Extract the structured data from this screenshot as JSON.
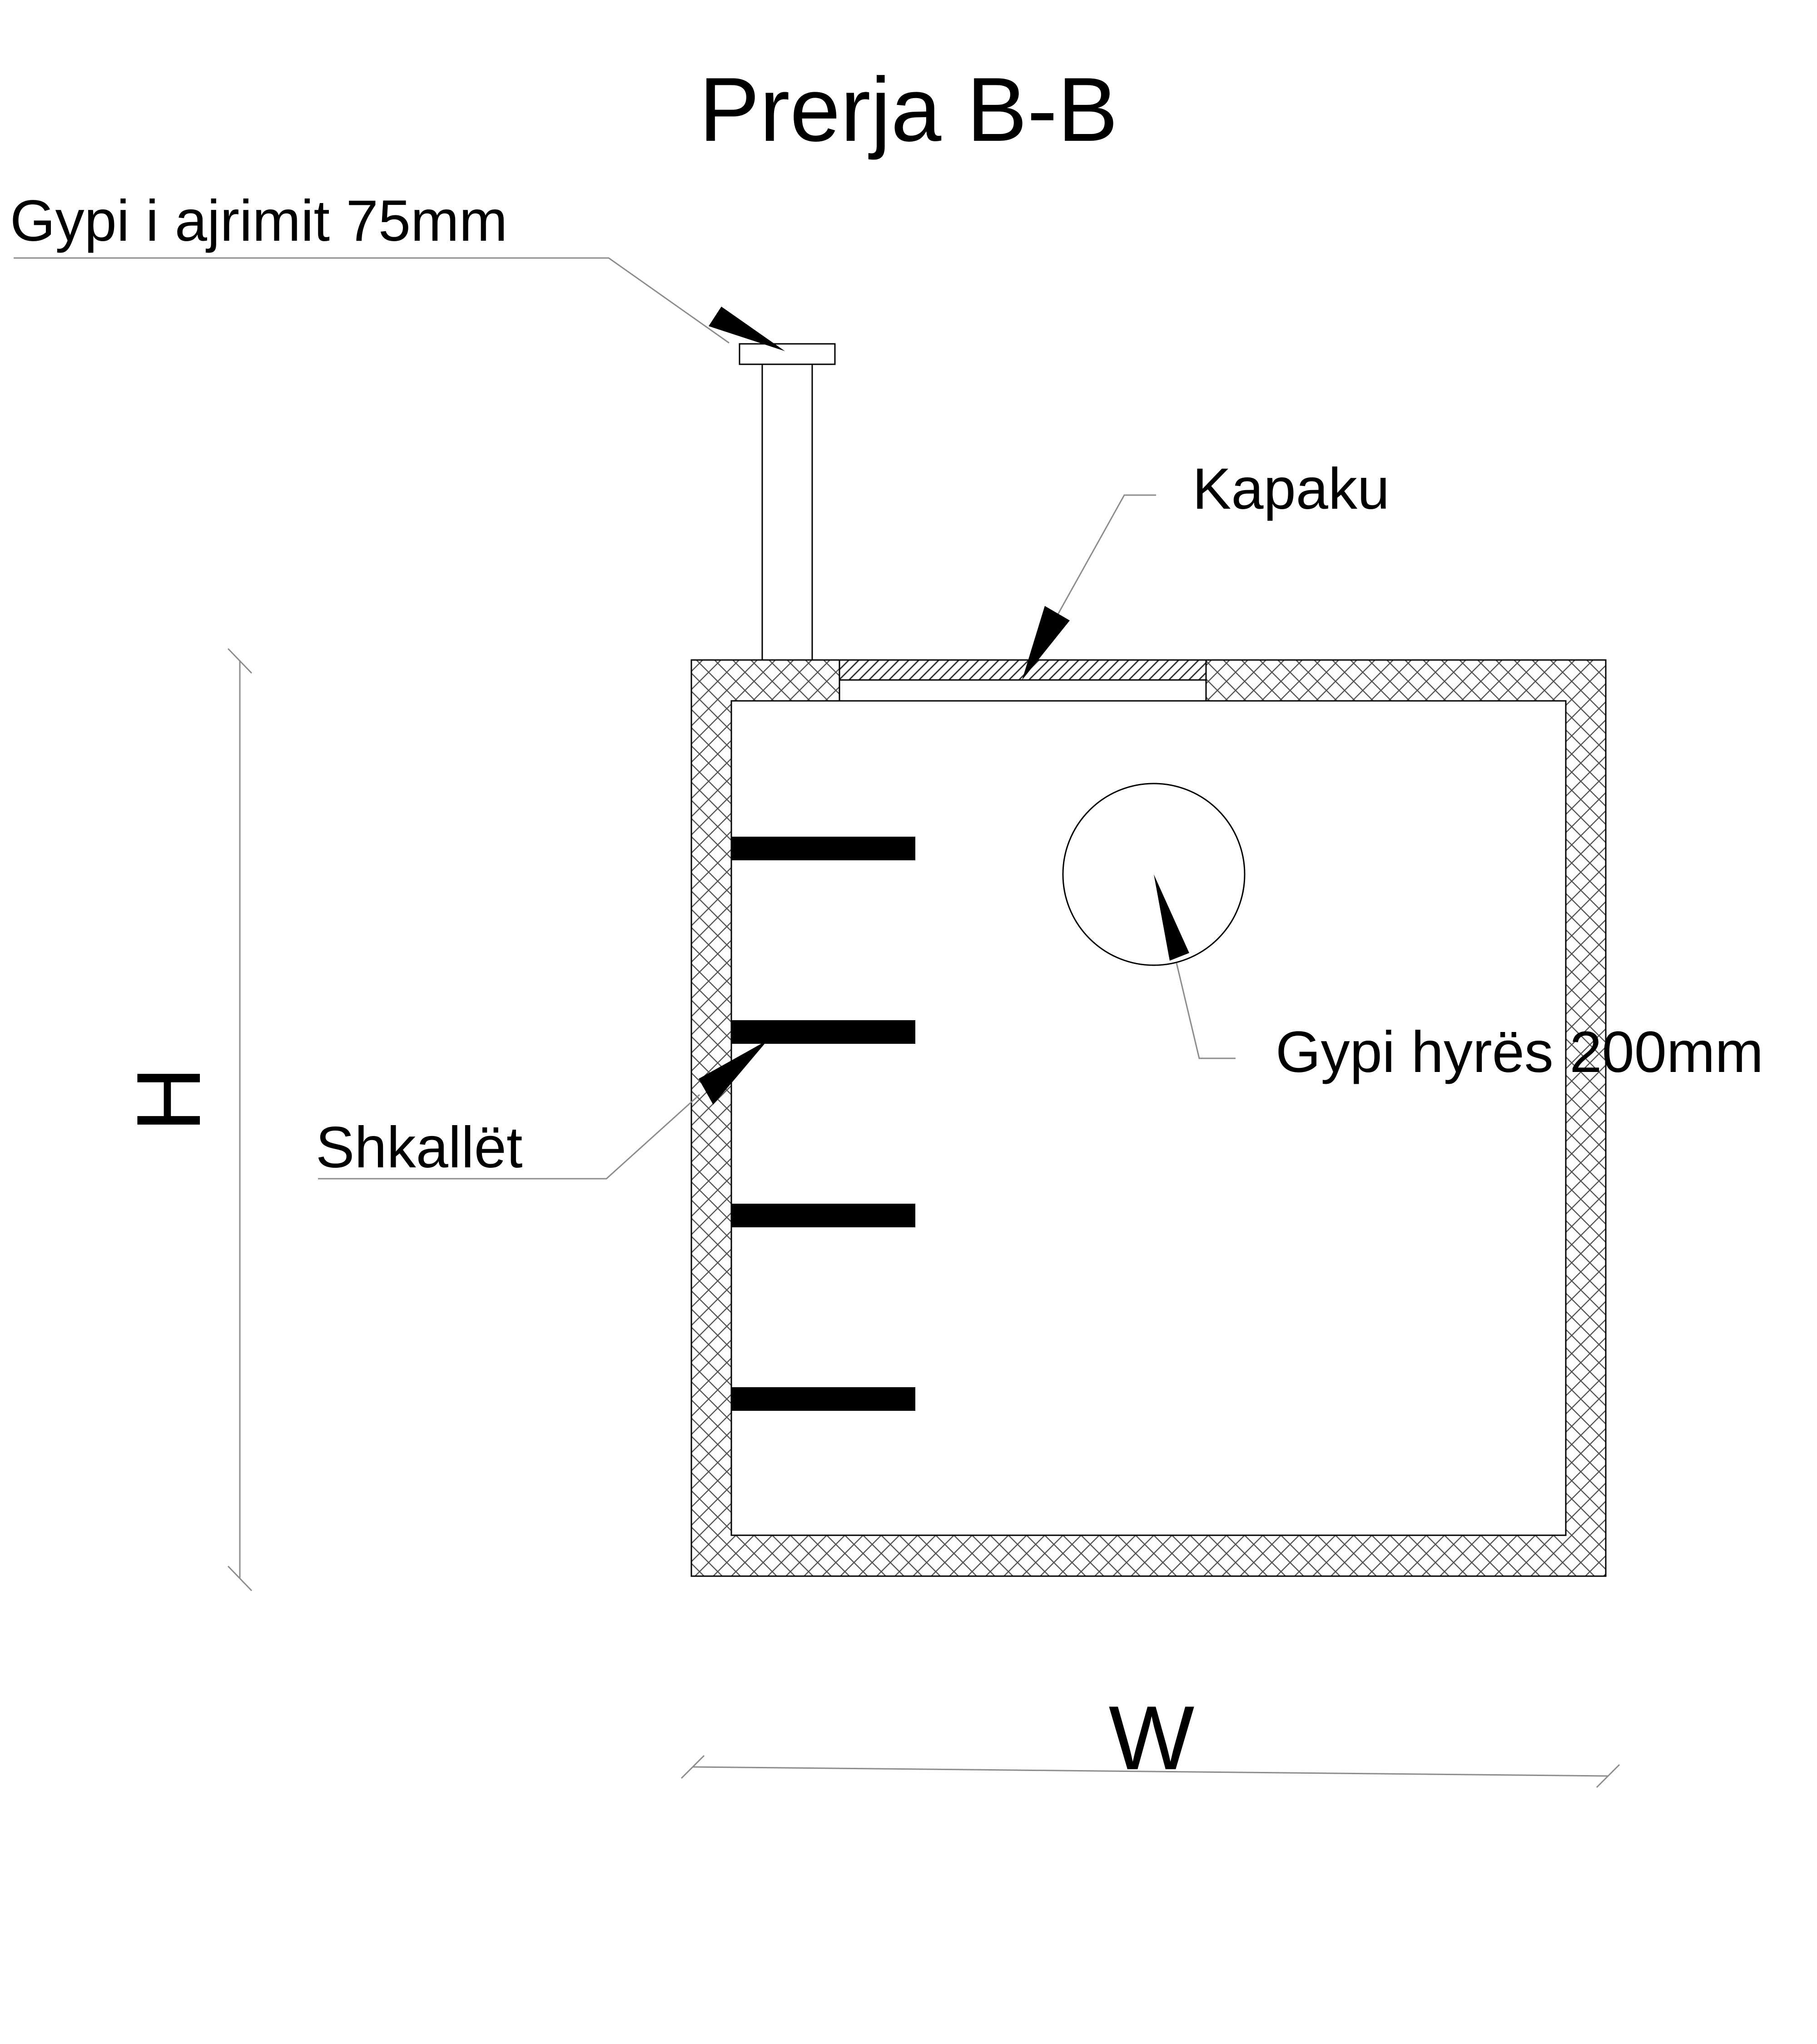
{
  "title": "Prerja B-B",
  "labels": {
    "vent_pipe": "Gypi i ajrimit 75mm",
    "cover": "Kapaku",
    "inlet_pipe": "Gypi hyrës 200mm",
    "ladder": "Shkallët"
  },
  "dimensions": {
    "height": "H",
    "width": "W"
  },
  "colors": {
    "line": "#000000",
    "leader": "#8c8c8c",
    "hatch": "#555555",
    "background": "#ffffff"
  },
  "ladder_rung_count": 4
}
